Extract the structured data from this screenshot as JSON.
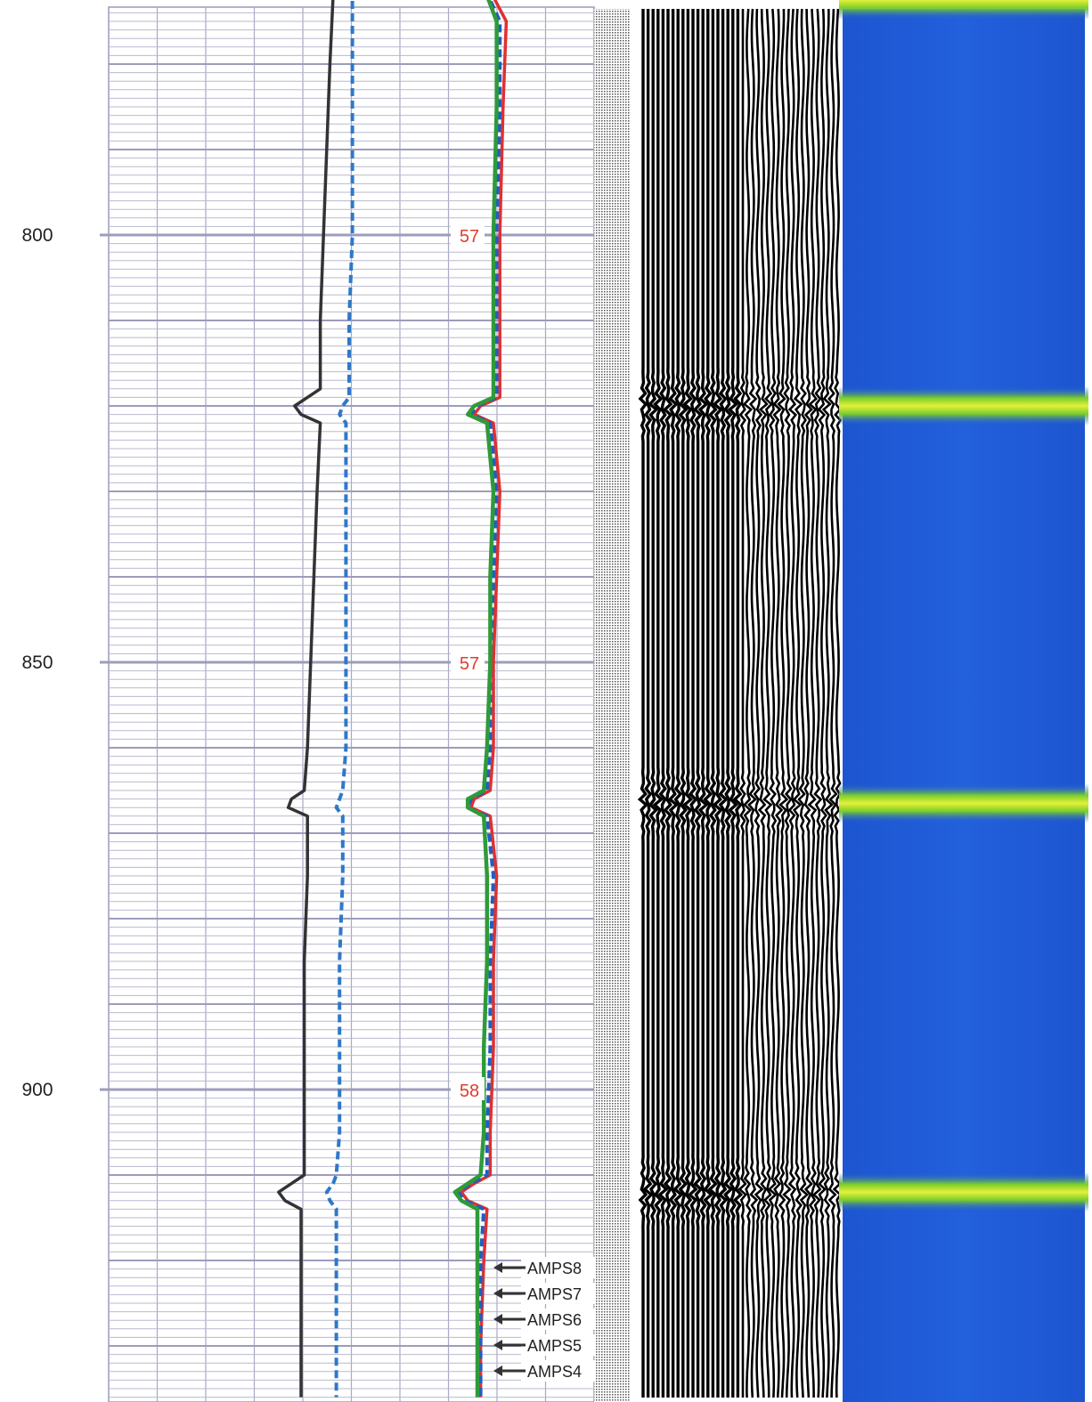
{
  "chart_data": {
    "type": "line",
    "title": "",
    "xlabel": "",
    "ylabel": "",
    "depth_range": [
      770,
      936
    ],
    "depth_ticks": [
      {
        "depth": 800,
        "label": "800"
      },
      {
        "depth": 850,
        "label": "850"
      },
      {
        "depth": 900,
        "label": "900"
      }
    ],
    "collar_marks": [
      {
        "depth": 800,
        "label": "57"
      },
      {
        "depth": 850,
        "label": "57"
      },
      {
        "depth": 900,
        "label": "58"
      }
    ],
    "collar_depths": [
      820,
      866.5,
      912
    ],
    "series": [
      {
        "color": "#333333",
        "style": "solid",
        "points": [
          [
            770,
            0.62
          ],
          [
            771,
            0.64
          ],
          [
            772,
            0.7
          ],
          [
            780,
            0.69
          ],
          [
            790,
            0.68
          ],
          [
            800,
            0.67
          ],
          [
            810,
            0.66
          ],
          [
            818,
            0.66
          ],
          [
            819,
            0.62
          ],
          [
            820,
            0.58
          ],
          [
            821,
            0.6
          ],
          [
            822,
            0.66
          ],
          [
            830,
            0.65
          ],
          [
            840,
            0.64
          ],
          [
            850,
            0.63
          ],
          [
            860,
            0.62
          ],
          [
            865,
            0.61
          ],
          [
            866,
            0.57
          ],
          [
            867,
            0.56
          ],
          [
            868,
            0.62
          ],
          [
            875,
            0.62
          ],
          [
            885,
            0.61
          ],
          [
            895,
            0.61
          ],
          [
            905,
            0.61
          ],
          [
            910,
            0.61
          ],
          [
            911,
            0.57
          ],
          [
            912,
            0.53
          ],
          [
            913,
            0.55
          ],
          [
            914,
            0.6
          ],
          [
            920,
            0.6
          ],
          [
            930,
            0.6
          ],
          [
            936,
            0.6
          ]
        ]
      },
      {
        "color": "#2f78c8",
        "style": "dashed",
        "points": [
          [
            770,
            0.75
          ],
          [
            771,
            0.74
          ],
          [
            772,
            0.76
          ],
          [
            780,
            0.76
          ],
          [
            790,
            0.76
          ],
          [
            800,
            0.76
          ],
          [
            810,
            0.75
          ],
          [
            819,
            0.75
          ],
          [
            820,
            0.73
          ],
          [
            821,
            0.72
          ],
          [
            822,
            0.74
          ],
          [
            830,
            0.74
          ],
          [
            840,
            0.74
          ],
          [
            850,
            0.74
          ],
          [
            860,
            0.74
          ],
          [
            865,
            0.73
          ],
          [
            866,
            0.72
          ],
          [
            867,
            0.71
          ],
          [
            868,
            0.73
          ],
          [
            875,
            0.73
          ],
          [
            885,
            0.72
          ],
          [
            895,
            0.72
          ],
          [
            905,
            0.72
          ],
          [
            910,
            0.71
          ],
          [
            911,
            0.7
          ],
          [
            912,
            0.68
          ],
          [
            913,
            0.69
          ],
          [
            914,
            0.71
          ],
          [
            920,
            0.71
          ],
          [
            930,
            0.71
          ],
          [
            936,
            0.71
          ]
        ]
      },
      {
        "color": "#e03030",
        "style": "solid",
        "points": [
          [
            770,
            1.17
          ],
          [
            775,
            1.24
          ],
          [
            785,
            1.23
          ],
          [
            800,
            1.22
          ],
          [
            810,
            1.22
          ],
          [
            819,
            1.22
          ],
          [
            820,
            1.16
          ],
          [
            821,
            1.14
          ],
          [
            822,
            1.2
          ],
          [
            830,
            1.22
          ],
          [
            840,
            1.21
          ],
          [
            850,
            1.2
          ],
          [
            860,
            1.2
          ],
          [
            865,
            1.19
          ],
          [
            866,
            1.14
          ],
          [
            867,
            1.13
          ],
          [
            868,
            1.19
          ],
          [
            875,
            1.21
          ],
          [
            885,
            1.2
          ],
          [
            895,
            1.2
          ],
          [
            905,
            1.19
          ],
          [
            910,
            1.19
          ],
          [
            911,
            1.14
          ],
          [
            912,
            1.1
          ],
          [
            913,
            1.12
          ],
          [
            914,
            1.18
          ],
          [
            920,
            1.17
          ],
          [
            930,
            1.16
          ],
          [
            936,
            1.16
          ]
        ]
      },
      {
        "color": "#1e5fc0",
        "style": "dashed",
        "points": [
          [
            770,
            1.16
          ],
          [
            775,
            1.22
          ],
          [
            785,
            1.22
          ],
          [
            800,
            1.21
          ],
          [
            810,
            1.21
          ],
          [
            819,
            1.21
          ],
          [
            820,
            1.15
          ],
          [
            821,
            1.13
          ],
          [
            822,
            1.19
          ],
          [
            830,
            1.21
          ],
          [
            840,
            1.2
          ],
          [
            850,
            1.19
          ],
          [
            860,
            1.19
          ],
          [
            865,
            1.18
          ],
          [
            866,
            1.13
          ],
          [
            867,
            1.12
          ],
          [
            868,
            1.18
          ],
          [
            875,
            1.2
          ],
          [
            885,
            1.19
          ],
          [
            895,
            1.19
          ],
          [
            905,
            1.18
          ],
          [
            910,
            1.18
          ],
          [
            911,
            1.13
          ],
          [
            912,
            1.09
          ],
          [
            913,
            1.11
          ],
          [
            914,
            1.17
          ],
          [
            920,
            1.16
          ],
          [
            930,
            1.16
          ],
          [
            936,
            1.16
          ]
        ]
      },
      {
        "color": "#2f9a3a",
        "style": "solid",
        "points": [
          [
            770,
            1.16
          ],
          [
            775,
            1.21
          ],
          [
            785,
            1.21
          ],
          [
            800,
            1.2
          ],
          [
            810,
            1.2
          ],
          [
            819,
            1.2
          ],
          [
            820,
            1.14
          ],
          [
            821,
            1.12
          ],
          [
            822,
            1.18
          ],
          [
            830,
            1.2
          ],
          [
            840,
            1.19
          ],
          [
            850,
            1.19
          ],
          [
            860,
            1.18
          ],
          [
            865,
            1.17
          ],
          [
            866,
            1.12
          ],
          [
            867,
            1.12
          ],
          [
            868,
            1.17
          ],
          [
            875,
            1.18
          ],
          [
            885,
            1.18
          ],
          [
            895,
            1.17
          ],
          [
            905,
            1.17
          ],
          [
            910,
            1.16
          ],
          [
            911,
            1.12
          ],
          [
            912,
            1.08
          ],
          [
            913,
            1.1
          ],
          [
            914,
            1.15
          ],
          [
            920,
            1.15
          ],
          [
            930,
            1.15
          ],
          [
            936,
            1.15
          ]
        ]
      }
    ],
    "amp_labels": [
      "AMPS8",
      "AMPS7",
      "AMPS6",
      "AMPS5",
      "AMPS4"
    ],
    "bond_map_colors": {
      "background": "#1f5bd6",
      "collar": "#a6dc1f",
      "collar_core": "#e8f23a"
    }
  }
}
